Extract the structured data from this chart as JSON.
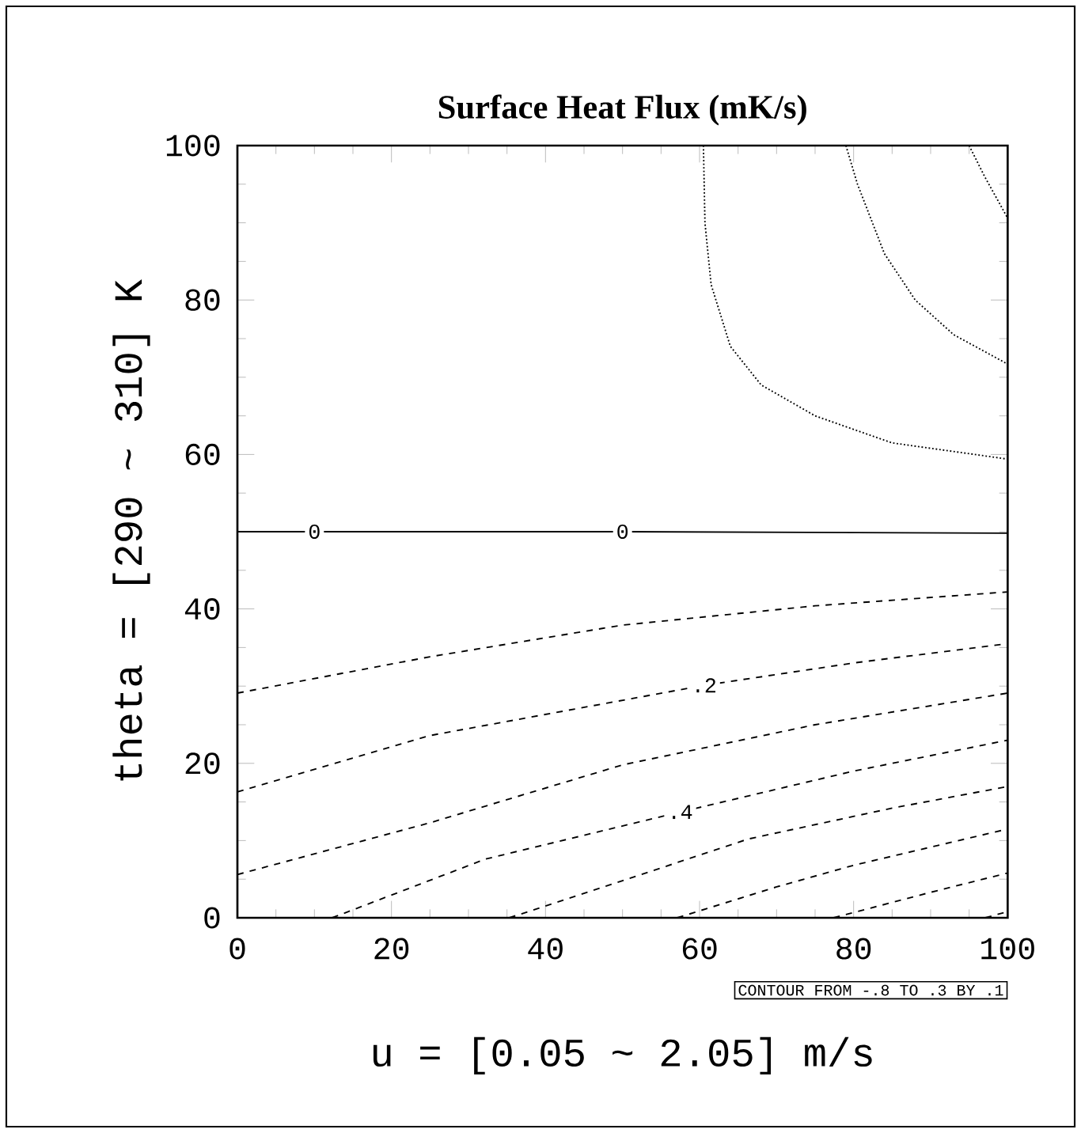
{
  "chart_data": {
    "type": "line",
    "title": "Surface Heat Flux (mK/s)",
    "xlabel": "u = [0.05 ~ 2.05] m/s",
    "ylabel": "theta = [290 ~ 310] K",
    "xlim": [
      0,
      100
    ],
    "ylim": [
      0,
      100
    ],
    "xticks": [
      0,
      20,
      40,
      60,
      80,
      100
    ],
    "yticks": [
      0,
      20,
      40,
      60,
      80,
      100
    ],
    "series": [
      {
        "color": "#000000",
        "line_style": "dotted",
        "x": [
          60.5,
          60.7,
          61.5,
          64,
          68,
          75,
          85,
          100
        ],
        "values": [
          100,
          90,
          82,
          74,
          69,
          65,
          61.5,
          59.4
        ]
      },
      {
        "color": "#000000",
        "line_style": "dotted",
        "x": [
          79,
          80.5,
          84,
          88,
          93,
          100
        ],
        "values": [
          100,
          95,
          86,
          80,
          75.5,
          71.7
        ]
      },
      {
        "color": "#000000",
        "line_style": "dotted",
        "x": [
          95,
          97,
          100
        ],
        "values": [
          100,
          96,
          90.6
        ]
      },
      {
        "color": "#000000",
        "line_style": "solid",
        "x": [
          0,
          50,
          100
        ],
        "values": [
          50,
          50,
          49.8
        ]
      },
      {
        "color": "#000000",
        "line_style": "dashed",
        "x": [
          0,
          25,
          50,
          75,
          100
        ],
        "values": [
          29.1,
          33.8,
          37.9,
          40.4,
          42.2
        ]
      },
      {
        "color": "#000000",
        "line_style": "dashed",
        "x": [
          0,
          25,
          60.6,
          80,
          100
        ],
        "values": [
          16.3,
          23.6,
          30.1,
          33,
          35.5
        ]
      },
      {
        "color": "#000000",
        "line_style": "dashed",
        "x": [
          0,
          25,
          50,
          75,
          100
        ],
        "values": [
          5.6,
          12.3,
          19.8,
          25,
          29.1
        ]
      },
      {
        "color": "#000000",
        "line_style": "dashed",
        "x": [
          12.3,
          32.2,
          57.5,
          80,
          100
        ],
        "values": [
          0,
          7.6,
          13.7,
          19,
          23
        ]
      },
      {
        "color": "#000000",
        "line_style": "dashed",
        "x": [
          35.3,
          50,
          66.3,
          85,
          100
        ],
        "values": [
          0,
          4.8,
          10.2,
          14.2,
          17
        ]
      },
      {
        "color": "#000000",
        "line_style": "dashed",
        "x": [
          57.1,
          70,
          80,
          100
        ],
        "values": [
          0,
          4,
          6.8,
          11.5
        ]
      },
      {
        "color": "#000000",
        "line_style": "dashed",
        "x": [
          77.4,
          90,
          100
        ],
        "values": [
          0,
          3.3,
          5.8
        ]
      },
      {
        "color": "#000000",
        "line_style": "dashed",
        "x": [
          97.1,
          100
        ],
        "values": [
          0,
          0.8
        ]
      }
    ],
    "annotations": [
      {
        "text": "0",
        "x": 10,
        "y": 50
      },
      {
        "text": "0",
        "x": 50,
        "y": 50
      },
      {
        "text": ".2",
        "x": 60.6,
        "y": 30.1
      },
      {
        "text": ".4",
        "x": 57.5,
        "y": 13.7
      },
      "CONTOUR FROM -.8 TO .3 BY .1"
    ]
  }
}
